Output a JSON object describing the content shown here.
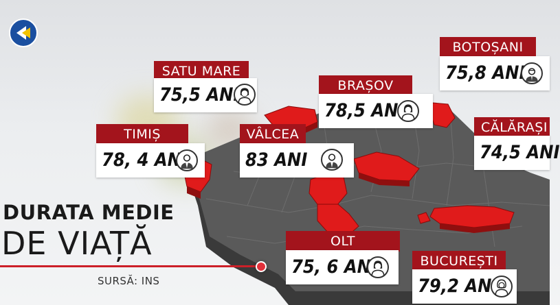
{
  "title": {
    "line1": "DURATA MEDIE",
    "line2": "DE VIAȚĂ"
  },
  "source": "SURSĂ: INS",
  "colors": {
    "label_bg": "#a3141c",
    "highlight_county": "#e01b1b",
    "map_gray": "#555555",
    "accent_line": "#cc1f28"
  },
  "counties": [
    {
      "id": "satu-mare",
      "name": "SATU MARE",
      "value": "75,5 ANI",
      "avatar_icon": "woman-avatar-icon"
    },
    {
      "id": "brasov",
      "name": "BRAȘOV",
      "value": "78,5 ANI",
      "avatar_icon": "woman-avatar-icon"
    },
    {
      "id": "botosani",
      "name": "BOTOȘANI",
      "value": "75,8 ANI",
      "avatar_icon": "man-avatar-icon"
    },
    {
      "id": "timis",
      "name": "TIMIȘ",
      "value": "78, 4 ANI",
      "avatar_icon": "man-avatar-icon"
    },
    {
      "id": "valcea",
      "name": "VÂLCEA",
      "value": "83 ANI",
      "avatar_icon": "man-avatar-icon"
    },
    {
      "id": "calarasi",
      "name": "CĂLĂRAȘI",
      "value": "74,5 ANI",
      "avatar_icon": ""
    },
    {
      "id": "olt",
      "name": "OLT",
      "value": "75, 6 ANI",
      "avatar_icon": "woman-avatar-icon"
    },
    {
      "id": "bucuresti",
      "name": "BUCUREȘTI",
      "value": "79,2 ANI",
      "avatar_icon": "elder-woman-avatar-icon"
    }
  ]
}
